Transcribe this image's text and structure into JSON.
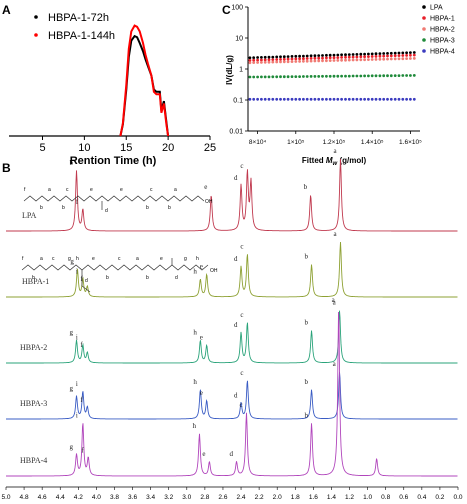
{
  "panel_labels": {
    "a": "A",
    "b": "B",
    "c": "C"
  },
  "chart_data": [
    {
      "type": "line",
      "panel": "A",
      "xlabel": "Rention Time (h)",
      "ylabel": "",
      "xlim": [
        1,
        25
      ],
      "ylim": [
        0,
        1.05
      ],
      "xticks": [
        5,
        10,
        15,
        20,
        25
      ],
      "legend_position": "top-left",
      "series": [
        {
          "name": "HBPA-1-72h",
          "color": "#000000",
          "x": [
            14.3,
            14.6,
            15.0,
            15.3,
            15.6,
            16.0,
            16.3,
            16.6,
            17.0,
            17.3,
            17.6,
            18.0,
            18.3,
            18.6,
            19.0,
            19.2,
            19.5,
            19.8,
            20.0
          ],
          "y": [
            0.0,
            0.1,
            0.4,
            0.68,
            0.82,
            0.86,
            0.85,
            0.8,
            0.73,
            0.66,
            0.6,
            0.52,
            0.4,
            0.38,
            0.38,
            0.22,
            0.3,
            0.12,
            0.0
          ]
        },
        {
          "name": "HBPA-1-144h",
          "color": "#ff0000",
          "x": [
            14.3,
            14.6,
            15.0,
            15.3,
            15.6,
            16.0,
            16.3,
            16.6,
            17.0,
            17.3,
            17.6,
            18.0,
            18.3,
            18.6,
            19.0,
            19.2,
            19.5,
            19.8,
            20.0
          ],
          "y": [
            0.0,
            0.11,
            0.44,
            0.75,
            0.9,
            0.95,
            0.94,
            0.9,
            0.8,
            0.7,
            0.62,
            0.52,
            0.38,
            0.36,
            0.36,
            0.2,
            0.28,
            0.1,
            0.0
          ]
        }
      ]
    },
    {
      "type": "scatter",
      "panel": "C",
      "title": "C",
      "xlabel": "Fitted Mw (g/mol)",
      "xlabel_main": "Fitted ",
      "xlabel_italic": "M",
      "xlabel_sub": "w",
      "xlabel_unit": " (g/mol)",
      "ylabel": "IV(dL/g)",
      "yscale": "log",
      "ylim": [
        0.01,
        100
      ],
      "yticks": [
        "100",
        "10",
        "1",
        "0.1",
        "0.01"
      ],
      "xlim": [
        75000,
        165000
      ],
      "xticks": [
        80000,
        100000,
        120000,
        140000,
        160000
      ],
      "xtick_labels": [
        "8×10⁴",
        "1×10⁵",
        "1.2×10⁵",
        "1.4×10⁵",
        "1.6×10⁵"
      ],
      "legend_position": "top-right",
      "series": [
        {
          "name": "LPA",
          "color": "#000000",
          "x": [
            76000,
            162000
          ],
          "y": [
            2.3,
            3.4
          ]
        },
        {
          "name": "HBPA-1",
          "color": "#e8202a",
          "x": [
            76000,
            162000
          ],
          "y": [
            1.9,
            2.8
          ]
        },
        {
          "name": "HBPA-2",
          "color": "#f07a73",
          "x": [
            76000,
            162000
          ],
          "y": [
            1.6,
            2.2
          ]
        },
        {
          "name": "HBPA-3",
          "color": "#1f8a3a",
          "x": [
            76000,
            162000
          ],
          "y": [
            0.55,
            0.62
          ]
        },
        {
          "name": "HBPA-4",
          "color": "#3b3bbf",
          "x": [
            76000,
            162000
          ],
          "y": [
            0.105,
            0.105
          ]
        }
      ]
    },
    {
      "type": "line",
      "panel": "B",
      "xlabel": "",
      "xlim": [
        5.0,
        0.0
      ],
      "xtick_labels": [
        "5.0",
        "4.8",
        "4.6",
        "4.4",
        "4.2",
        "4.0",
        "3.8",
        "3.6",
        "3.4",
        "3.2",
        "3.0",
        "2.8",
        "2.6",
        "2.4",
        "2.2",
        "2.0",
        "1.8",
        "1.6",
        "1.4",
        "1.2",
        "1.0",
        "0.8",
        "0.6",
        "0.4",
        "0.2",
        "0.0"
      ],
      "series": [
        {
          "name": "LPA",
          "color": "#c0394e",
          "peaks": [
            {
              "ppm": 4.22,
              "h": 1.0,
              "label": "b"
            },
            {
              "ppm": 4.15,
              "h": 0.35,
              "label": "f"
            },
            {
              "ppm": 2.73,
              "h": 0.6,
              "label": "e"
            },
            {
              "ppm": 2.4,
              "h": 0.75,
              "label": "d"
            },
            {
              "ppm": 2.33,
              "h": 0.95,
              "label": "c"
            },
            {
              "ppm": 2.29,
              "h": 0.8,
              "label": ""
            },
            {
              "ppm": 1.63,
              "h": 0.6,
              "label": "b"
            },
            {
              "ppm": 1.3,
              "h": 1.2,
              "label": "a"
            }
          ]
        },
        {
          "name": "HBPA-1",
          "color": "#8ea133",
          "peaks": [
            {
              "ppm": 4.21,
              "h": 0.55,
              "label": "g"
            },
            {
              "ppm": 4.15,
              "h": 0.35,
              "label": "i"
            },
            {
              "ppm": 4.1,
              "h": 0.2,
              "label": "f"
            },
            {
              "ppm": 2.85,
              "h": 0.35,
              "label": "h"
            },
            {
              "ppm": 2.78,
              "h": 0.45,
              "label": "e"
            },
            {
              "ppm": 2.4,
              "h": 0.6,
              "label": "d"
            },
            {
              "ppm": 2.33,
              "h": 0.85,
              "label": "c"
            },
            {
              "ppm": 1.62,
              "h": 0.65,
              "label": "b"
            },
            {
              "ppm": 1.3,
              "h": 1.1,
              "label": "a"
            }
          ]
        },
        {
          "name": "HBPA-2",
          "color": "#2aa37a",
          "peaks": [
            {
              "ppm": 4.22,
              "h": 0.45,
              "label": "g"
            },
            {
              "ppm": 4.15,
              "h": 0.35,
              "label": "i"
            },
            {
              "ppm": 4.1,
              "h": 0.2,
              "label": "f"
            },
            {
              "ppm": 2.85,
              "h": 0.45,
              "label": "h"
            },
            {
              "ppm": 2.78,
              "h": 0.35,
              "label": "e"
            },
            {
              "ppm": 2.4,
              "h": 0.6,
              "label": "d"
            },
            {
              "ppm": 2.33,
              "h": 0.8,
              "label": "c"
            },
            {
              "ppm": 1.62,
              "h": 0.65,
              "label": "b"
            },
            {
              "ppm": 1.31,
              "h": 1.05,
              "label": "a"
            }
          ]
        },
        {
          "name": "HBPA-3",
          "color": "#3a5cc4",
          "peaks": [
            {
              "ppm": 4.22,
              "h": 0.5,
              "label": "g"
            },
            {
              "ppm": 4.15,
              "h": 0.6,
              "label": "i"
            },
            {
              "ppm": 4.1,
              "h": 0.25,
              "label": "f"
            },
            {
              "ppm": 2.85,
              "h": 0.65,
              "label": "h"
            },
            {
              "ppm": 2.78,
              "h": 0.4,
              "label": "e"
            },
            {
              "ppm": 2.4,
              "h": 0.35,
              "label": "d"
            },
            {
              "ppm": 2.33,
              "h": 0.85,
              "label": "c"
            },
            {
              "ppm": 1.62,
              "h": 0.65,
              "label": "b"
            },
            {
              "ppm": 1.31,
              "h": 1.05,
              "label": "a"
            }
          ]
        },
        {
          "name": "HBPA-4",
          "color": "#b146bc",
          "peaks": [
            {
              "ppm": 4.22,
              "h": 0.3,
              "label": "g"
            },
            {
              "ppm": 4.15,
              "h": 0.75,
              "label": "i"
            },
            {
              "ppm": 4.09,
              "h": 0.25,
              "label": "f"
            },
            {
              "ppm": 2.86,
              "h": 0.6,
              "label": "h"
            },
            {
              "ppm": 2.75,
              "h": 0.2,
              "label": "e"
            },
            {
              "ppm": 2.45,
              "h": 0.2,
              "label": "d"
            },
            {
              "ppm": 2.34,
              "h": 0.9,
              "label": "c"
            },
            {
              "ppm": 1.62,
              "h": 0.75,
              "label": "b"
            },
            {
              "ppm": 1.32,
              "h": 2.4,
              "label": "a"
            },
            {
              "ppm": 0.9,
              "h": 0.25,
              "label": ""
            }
          ]
        }
      ]
    }
  ],
  "structure_lpa": {
    "letters": [
      "f",
      "a",
      "c",
      "e",
      "e",
      "c",
      "a"
    ],
    "subs": [
      "b",
      "b",
      "d",
      "b",
      "b"
    ],
    "oh": "OH",
    "dots": "…"
  },
  "structure_hbpa": {
    "letters": [
      "f",
      "a",
      "c",
      "g",
      "h",
      "e",
      "c",
      "a",
      "e",
      "g",
      "h"
    ],
    "subs": [
      "b",
      "d",
      "b",
      "b",
      "d"
    ],
    "oh": "OH"
  }
}
